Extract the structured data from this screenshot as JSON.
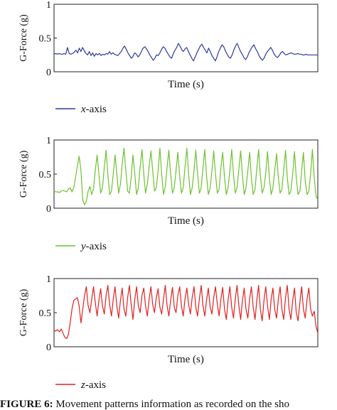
{
  "chart_data": [
    {
      "type": "line",
      "xlabel": "Time (s)",
      "ylabel": "G-Force (g)",
      "ylim": [
        0,
        1
      ],
      "yticks": [
        "0",
        "0.5",
        "1"
      ],
      "grid": false,
      "legend_position": "below",
      "series": [
        {
          "name": "x-axis",
          "legend_prefix": "x",
          "legend_suffix": "-axis",
          "color": "#2e3a9e",
          "values": [
            0.26,
            0.27,
            0.26,
            0.27,
            0.26,
            0.26,
            0.27,
            0.26,
            0.36,
            0.27,
            0.26,
            0.27,
            0.29,
            0.32,
            0.28,
            0.35,
            0.3,
            0.36,
            0.31,
            0.27,
            0.25,
            0.3,
            0.24,
            0.28,
            0.23,
            0.27,
            0.25,
            0.27,
            0.24,
            0.26,
            0.25,
            0.27,
            0.26,
            0.3,
            0.26,
            0.28,
            0.26,
            0.25,
            0.24,
            0.27,
            0.3,
            0.35,
            0.38,
            0.33,
            0.28,
            0.24,
            0.2,
            0.23,
            0.28,
            0.26,
            0.22,
            0.25,
            0.3,
            0.35,
            0.37,
            0.34,
            0.3,
            0.25,
            0.21,
            0.17,
            0.2,
            0.25,
            0.24,
            0.28,
            0.33,
            0.37,
            0.35,
            0.3,
            0.26,
            0.22,
            0.2,
            0.27,
            0.32,
            0.36,
            0.42,
            0.38,
            0.33,
            0.3,
            0.34,
            0.36,
            0.3,
            0.25,
            0.2,
            0.16,
            0.22,
            0.28,
            0.33,
            0.38,
            0.41,
            0.36,
            0.32,
            0.28,
            0.35,
            0.3,
            0.24,
            0.2,
            0.16,
            0.22,
            0.3,
            0.35,
            0.4,
            0.37,
            0.31,
            0.26,
            0.22,
            0.2,
            0.25,
            0.32,
            0.38,
            0.42,
            0.36,
            0.3,
            0.26,
            0.21,
            0.18,
            0.22,
            0.28,
            0.33,
            0.37,
            0.4,
            0.34,
            0.3,
            0.24,
            0.2,
            0.17,
            0.2,
            0.26,
            0.3,
            0.33,
            0.36,
            0.32,
            0.26,
            0.23,
            0.21,
            0.24,
            0.28,
            0.3,
            0.27,
            0.25,
            0.26,
            0.27,
            0.28,
            0.27,
            0.26,
            0.26,
            0.27,
            0.26,
            0.26,
            0.25,
            0.25,
            0.26,
            0.25,
            0.25,
            0.25,
            0.25,
            0.25,
            0.25,
            0.25
          ]
        }
      ]
    },
    {
      "type": "line",
      "xlabel": "Time (s)",
      "ylabel": "G-Force (g)",
      "ylim": [
        0,
        1
      ],
      "yticks": [
        "0",
        "0.5",
        "1"
      ],
      "grid": false,
      "legend_position": "below",
      "series": [
        {
          "name": "y-axis",
          "legend_prefix": "y",
          "legend_suffix": "-axis",
          "color": "#6cc22e",
          "values": [
            0.25,
            0.24,
            0.24,
            0.23,
            0.25,
            0.26,
            0.25,
            0.24,
            0.28,
            0.3,
            0.24,
            0.3,
            0.45,
            0.62,
            0.76,
            0.55,
            0.12,
            0.05,
            0.1,
            0.25,
            0.32,
            0.2,
            0.28,
            0.55,
            0.78,
            0.5,
            0.22,
            0.3,
            0.6,
            0.85,
            0.5,
            0.2,
            0.25,
            0.5,
            0.78,
            0.5,
            0.22,
            0.35,
            0.65,
            0.88,
            0.55,
            0.25,
            0.22,
            0.45,
            0.78,
            0.5,
            0.2,
            0.3,
            0.6,
            0.86,
            0.5,
            0.22,
            0.35,
            0.62,
            0.84,
            0.55,
            0.25,
            0.3,
            0.55,
            0.88,
            0.5,
            0.2,
            0.32,
            0.6,
            0.85,
            0.5,
            0.22,
            0.3,
            0.55,
            0.82,
            0.48,
            0.22,
            0.3,
            0.6,
            0.88,
            0.5,
            0.2,
            0.3,
            0.55,
            0.85,
            0.5,
            0.22,
            0.3,
            0.6,
            0.86,
            0.48,
            0.2,
            0.3,
            0.55,
            0.84,
            0.5,
            0.22,
            0.28,
            0.6,
            0.82,
            0.45,
            0.2,
            0.3,
            0.55,
            0.86,
            0.5,
            0.22,
            0.3,
            0.58,
            0.84,
            0.48,
            0.2,
            0.3,
            0.55,
            0.82,
            0.45,
            0.2,
            0.28,
            0.58,
            0.86,
            0.48,
            0.22,
            0.3,
            0.52,
            0.83,
            0.45,
            0.2,
            0.3,
            0.55,
            0.8,
            0.45,
            0.22,
            0.28,
            0.55,
            0.85,
            0.45,
            0.2,
            0.25,
            0.5,
            0.83,
            0.45,
            0.2,
            0.25,
            0.55,
            0.82,
            0.4,
            0.2,
            0.25,
            0.5,
            0.86,
            0.45,
            0.18,
            0.12
          ]
        }
      ]
    },
    {
      "type": "line",
      "xlabel": "Time (s)",
      "ylabel": "G-Force (g)",
      "ylim": [
        0,
        1
      ],
      "yticks": [
        "0",
        "0.5",
        "1"
      ],
      "grid": false,
      "legend_position": "below",
      "series": [
        {
          "name": "z-axis",
          "legend_prefix": "z",
          "legend_suffix": "-axis",
          "color": "#e02020",
          "values": [
            0.24,
            0.23,
            0.25,
            0.22,
            0.26,
            0.2,
            0.14,
            0.12,
            0.18,
            0.35,
            0.55,
            0.68,
            0.7,
            0.72,
            0.6,
            0.35,
            0.55,
            0.75,
            0.88,
            0.6,
            0.5,
            0.7,
            0.88,
            0.65,
            0.45,
            0.68,
            0.85,
            0.6,
            0.48,
            0.75,
            0.9,
            0.62,
            0.45,
            0.7,
            0.88,
            0.6,
            0.42,
            0.68,
            0.86,
            0.55,
            0.45,
            0.72,
            0.9,
            0.62,
            0.4,
            0.7,
            0.88,
            0.6,
            0.5,
            0.75,
            0.86,
            0.6,
            0.45,
            0.7,
            0.88,
            0.62,
            0.5,
            0.72,
            0.85,
            0.58,
            0.48,
            0.7,
            0.9,
            0.6,
            0.45,
            0.68,
            0.87,
            0.58,
            0.5,
            0.75,
            0.88,
            0.6,
            0.45,
            0.7,
            0.86,
            0.62,
            0.48,
            0.72,
            0.88,
            0.58,
            0.45,
            0.7,
            0.9,
            0.6,
            0.45,
            0.68,
            0.86,
            0.58,
            0.48,
            0.72,
            0.88,
            0.62,
            0.45,
            0.7,
            0.87,
            0.55,
            0.4,
            0.68,
            0.88,
            0.58,
            0.42,
            0.7,
            0.9,
            0.6,
            0.4,
            0.68,
            0.86,
            0.55,
            0.42,
            0.7,
            0.88,
            0.58,
            0.4,
            0.68,
            0.9,
            0.55,
            0.38,
            0.68,
            0.88,
            0.6,
            0.4,
            0.7,
            0.86,
            0.55,
            0.42,
            0.7,
            0.88,
            0.55,
            0.4,
            0.72,
            0.9,
            0.55,
            0.4,
            0.68,
            0.86,
            0.5,
            0.38,
            0.65,
            0.88,
            0.55,
            0.42,
            0.7,
            0.86,
            0.55,
            0.45,
            0.52,
            0.3,
            0.2
          ]
        }
      ]
    }
  ],
  "caption": {
    "figure_label": "FIGURE 6:",
    "text": "Movement patterns information as recorded on the sho"
  }
}
